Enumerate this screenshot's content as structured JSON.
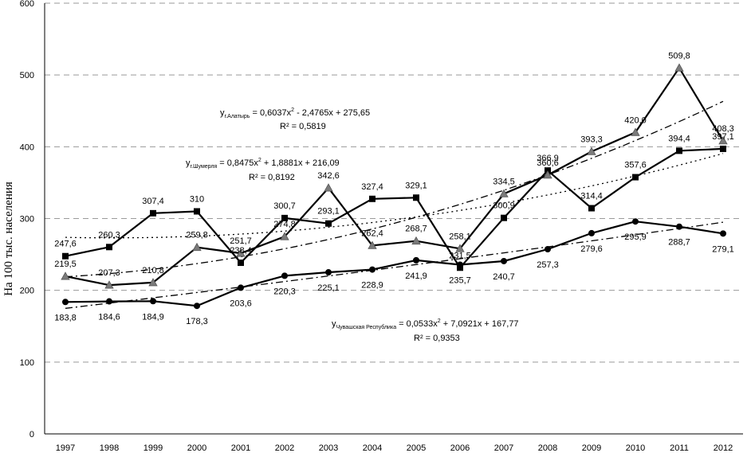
{
  "chart_data": {
    "type": "line",
    "ylabel": "На 100 тыс. населения",
    "ylim": [
      0,
      600
    ],
    "yticks": [
      0,
      100,
      200,
      300,
      400,
      500,
      600
    ],
    "grid": "horizontal-dashed",
    "categories": [
      "1997",
      "1998",
      "1999",
      "2000",
      "2001",
      "2002",
      "2003",
      "2004",
      "2005",
      "2006",
      "2007",
      "2008",
      "2009",
      "2010",
      "2011",
      "2012"
    ],
    "series": [
      {
        "marker": "square",
        "values": [
          247.6,
          260.3,
          307.4,
          310,
          238.4,
          300.7,
          293.1,
          327.4,
          329.1,
          231.5,
          300.9,
          366.9,
          314.4,
          357.6,
          394.4,
          397.1
        ],
        "labels": [
          "247,6",
          "260,3",
          "307,4",
          "310",
          "238,4",
          "300,7",
          "293,1",
          "327,4",
          "329,1",
          "231,5",
          "300,9",
          "366,9",
          "314,4",
          "357,6",
          "394,4",
          "397,1"
        ],
        "trend": "dotted"
      },
      {
        "marker": "triangle",
        "values": [
          219.5,
          207.3,
          210.8,
          259.8,
          251.7,
          274.8,
          342.6,
          262.4,
          268.7,
          258.1,
          334.5,
          360.6,
          393.3,
          420.0,
          509.8,
          408.3
        ],
        "labels": [
          "219,5",
          "207,3",
          "210,8",
          "259,8",
          "251,7",
          "274,8",
          "342,6",
          "262,4",
          "268,7",
          "258,1",
          "334,5",
          "360,6",
          "393,3",
          "420,0",
          "509,8",
          "408,3"
        ],
        "trend": "dash-dot"
      },
      {
        "marker": "circle",
        "values": [
          183.8,
          184.6,
          184.9,
          178.3,
          203.6,
          220.3,
          225.1,
          228.9,
          241.9,
          235.7,
          240.7,
          257.3,
          279.6,
          295.9,
          288.7,
          279.1
        ],
        "labels": [
          "183,8",
          "184,6",
          "184,9",
          "178,3",
          "203,6",
          "220,3",
          "225,1",
          "228,9",
          "241,9",
          "235,7",
          "240,7",
          "257,3",
          "279,6",
          "295,9",
          "288,7",
          "279,1"
        ],
        "trend": "dash-dot"
      }
    ],
    "annotations": [
      {
        "y_prefix": "y",
        "sub": "г.Алатырь",
        "rhs_a": " = 0,6037x",
        "sup": "2",
        "rhs_b": " - 2,4765x + 275,65",
        "r2": "R² = 0,5819"
      },
      {
        "y_prefix": "y",
        "sub": "г.Шумерля",
        "rhs_a": " = 0,8475x",
        "sup": "2",
        "rhs_b": " + 1,8881x + 216,09",
        "r2": "R² = 0,8192"
      },
      {
        "y_prefix": "y",
        "sub": "Чувашская  Республика",
        "rhs_a": " = 0,0533x",
        "sup": "2",
        "rhs_b": " + 7,0921x + 167,77",
        "r2": "R² = 0,9353"
      }
    ]
  }
}
